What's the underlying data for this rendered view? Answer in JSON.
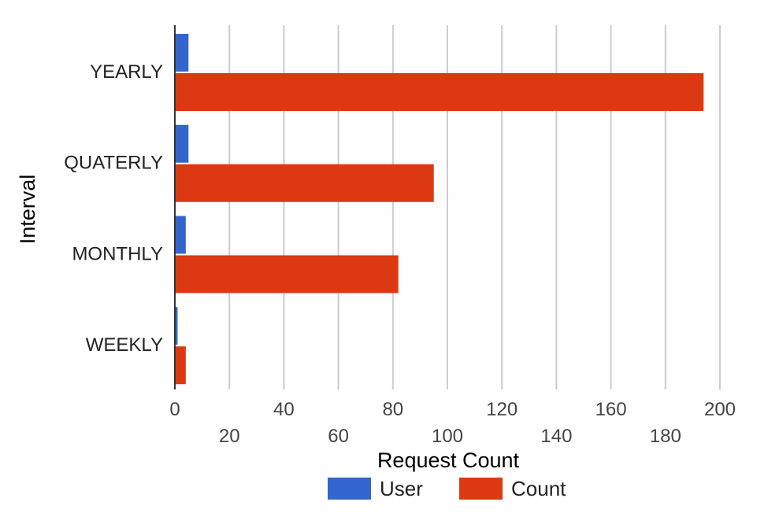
{
  "chart_data": {
    "type": "bar",
    "orientation": "horizontal",
    "categories": [
      "YEARLY",
      "QUATERLY",
      "MONTHLY",
      "WEEKLY"
    ],
    "series": [
      {
        "name": "User",
        "color": "#3366cc",
        "values": [
          5,
          5,
          4,
          1
        ]
      },
      {
        "name": "Count",
        "color": "#dc3912",
        "values": [
          194,
          95,
          82,
          4
        ]
      }
    ],
    "xlabel": "Request Count",
    "ylabel": "Interval",
    "xlim": [
      0,
      200
    ],
    "xticks": [
      0,
      20,
      40,
      60,
      80,
      100,
      120,
      140,
      160,
      180,
      200
    ],
    "grid": true,
    "legend": "bottom",
    "gridline_color": "#cccccc",
    "axis_color": "#333333"
  }
}
